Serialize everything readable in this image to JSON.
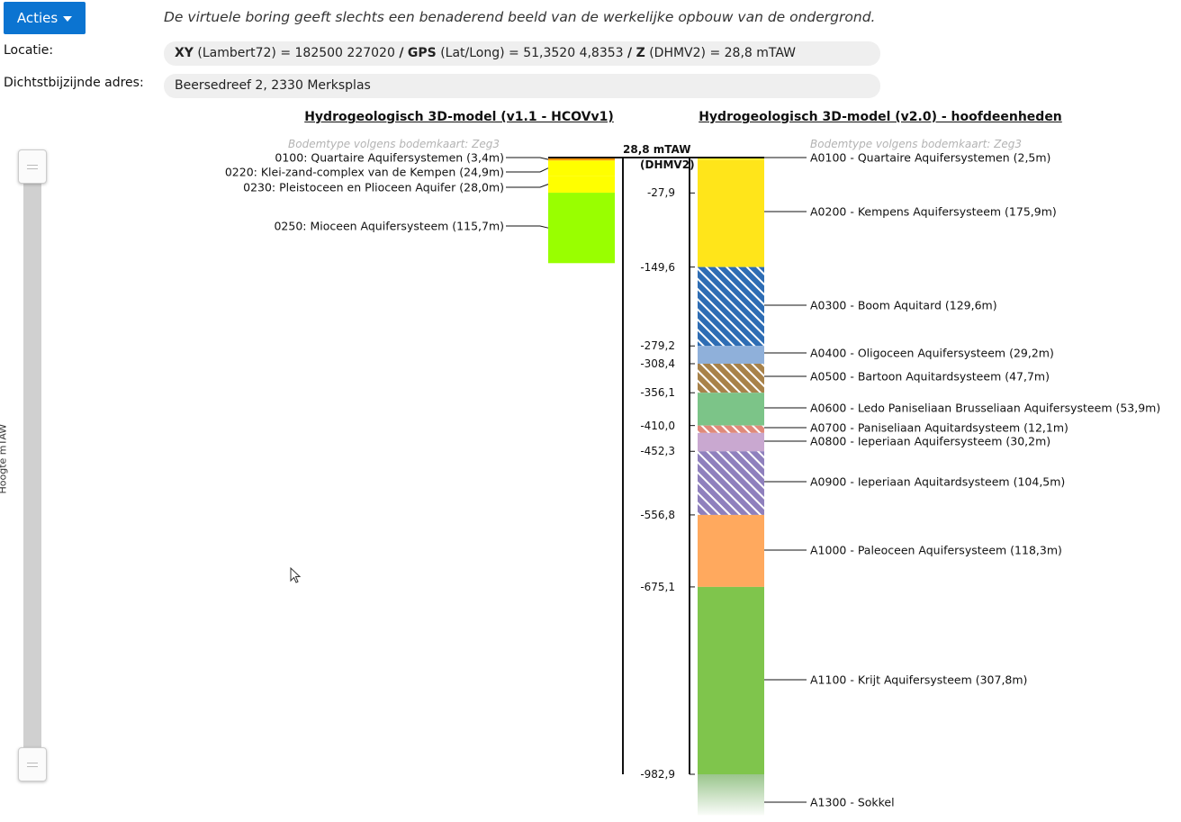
{
  "toolbar": {
    "acties_label": "Acties"
  },
  "disclaimer": "De virtuele boring geeft slechts een benaderend beeld van de werkelijke opbouw van de ondergrond.",
  "location": {
    "label": "Locatie:",
    "xy_key": "XY",
    "xy_system": "(Lambert72)",
    "xy_value": "= 182500 227020",
    "sep1": "/",
    "gps_key": "GPS",
    "gps_system": "(Lat/Long)",
    "gps_value": "= 51,3520 4,8353",
    "sep2": "/",
    "z_key": "Z",
    "z_system": "(DHMV2)",
    "z_value": "= 28,8 mTAW"
  },
  "address": {
    "label": "Dichtstbijzijnde adres:",
    "value": "Beersedreef 2, 2330 Merksplas"
  },
  "slider": {
    "axis_label": "Hoogte mTAW"
  },
  "columns": {
    "left": {
      "title": "Hydrogeologisch 3D-model (v1.1 - HCOVv1)",
      "soil_type": "Bodemtype volgens bodemkaart: Zeg3",
      "layers": [
        {
          "label": "0100: Quartaire Aquifersystemen (3,4m)",
          "top": 28.8,
          "bottom": 25.4,
          "color": "#ff9900"
        },
        {
          "label": "0220: Klei-zand-complex van de Kempen (24,9m)",
          "top": 25.4,
          "bottom": 0.5,
          "color": "#ffff00"
        },
        {
          "label": "0230: Pleistoceen en Plioceen Aquifer (28,0m)",
          "top": 0.5,
          "bottom": -27.5,
          "color": "#ffff00"
        },
        {
          "label": "0250: Mioceen Aquifersysteem (115,7m)",
          "top": -27.5,
          "bottom": -143.2,
          "color": "#99ff00"
        }
      ]
    },
    "axis": {
      "top_value": "28,8 mTAW",
      "top_unit": "(DHMV2)",
      "ticks": [
        {
          "label": "-27,9",
          "value": -27.9
        },
        {
          "label": "-149,6",
          "value": -149.6
        },
        {
          "label": "-279,2",
          "value": -279.2
        },
        {
          "label": "-308,4",
          "value": -308.4
        },
        {
          "label": "-356,1",
          "value": -356.1
        },
        {
          "label": "-410,0",
          "value": -410.0
        },
        {
          "label": "-452,3",
          "value": -452.3
        },
        {
          "label": "-556,8",
          "value": -556.8
        },
        {
          "label": "-675,1",
          "value": -675.1
        },
        {
          "label": "-982,9",
          "value": -982.9
        }
      ]
    },
    "right": {
      "title": "Hydrogeologisch 3D-model (v2.0) - hoofdeenheden",
      "soil_type": "Bodemtype volgens bodemkaart: Zeg3",
      "layers": [
        {
          "label": "A0100 - Quartaire Aquifersystemen (2,5m)",
          "top": 28.8,
          "bottom": 26.3,
          "color": "#ffee22",
          "hatch": false
        },
        {
          "label": "A0200 - Kempens Aquifersysteem (175,9m)",
          "top": 26.3,
          "bottom": -149.6,
          "color": "#ffe51a",
          "hatch": false
        },
        {
          "label": "A0300 - Boom Aquitard (129,6m)",
          "top": -149.6,
          "bottom": -279.2,
          "color": "#2e6db4",
          "hatch": true
        },
        {
          "label": "A0400 - Oligoceen Aquifersysteem (29,2m)",
          "top": -279.2,
          "bottom": -308.4,
          "color": "#8fb0da",
          "hatch": false
        },
        {
          "label": "A0500 - Bartoon Aquitardsysteem (47,7m)",
          "top": -308.4,
          "bottom": -356.1,
          "color": "#a8824a",
          "hatch": true
        },
        {
          "label": "A0600 - Ledo Paniseliaan Brusseliaan Aquifersysteem (53,9m)",
          "top": -356.1,
          "bottom": -410.0,
          "color": "#7cc488",
          "hatch": false
        },
        {
          "label": "A0700 - Paniseliaan Aquitardsysteem (12,1m)",
          "top": -410.0,
          "bottom": -422.1,
          "color": "#e08a7a",
          "hatch": true
        },
        {
          "label": "A0800 - Ieperiaan Aquifersysteem (30,2m)",
          "top": -422.1,
          "bottom": -452.3,
          "color": "#c9a8d0",
          "hatch": false
        },
        {
          "label": "A0900 - Ieperiaan Aquitardsysteem (104,5m)",
          "top": -452.3,
          "bottom": -556.8,
          "color": "#8f80bd",
          "hatch": true
        },
        {
          "label": "A1000 - Paleoceen Aquifersysteem (118,3m)",
          "top": -556.8,
          "bottom": -675.1,
          "color": "#ffa95e",
          "hatch": false
        },
        {
          "label": "A1100 - Krijt Aquifersysteem (307,8m)",
          "top": -675.1,
          "bottom": -982.9,
          "color": "#7fc54c",
          "hatch": false
        },
        {
          "label": "A1300 - Sokkel",
          "top": -982.9,
          "bottom": -1050.0,
          "color": "#8fbf80",
          "hatch": false,
          "fade": true
        }
      ]
    }
  }
}
